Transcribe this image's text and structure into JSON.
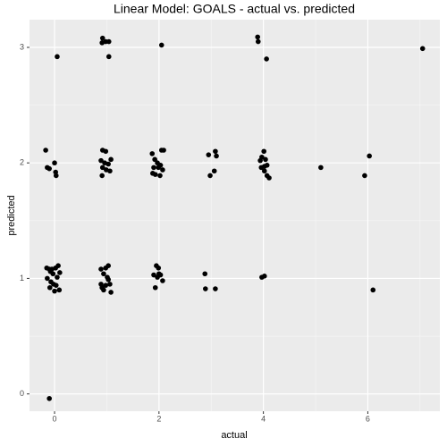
{
  "chart_data": {
    "type": "scatter",
    "title": "Linear Model: GOALS - actual vs. predicted",
    "x_label": "actual",
    "y_label": "predicted",
    "xlim": [
      -0.48,
      7.38
    ],
    "ylim": [
      -0.15,
      3.24
    ],
    "xticks": [
      0,
      2,
      4,
      6
    ],
    "yticks": [
      0,
      1,
      2,
      3
    ],
    "xminor": [
      1,
      3,
      5,
      7
    ],
    "yminor": [
      0.5,
      1.5,
      2.5
    ],
    "grid": true,
    "color": "#000000",
    "background": "#ebebeb",
    "x": [
      0.05,
      -0.17,
      -0.14,
      -0.1,
      0,
      0.02,
      0.03,
      -0.15,
      -0.1,
      -0.05,
      0.02,
      0.07,
      -0.14,
      -0.07,
      -0.02,
      0.03,
      0.09,
      -0.09,
      -0.03,
      0.05,
      0,
      -0.08,
      0.1,
      -0.1,
      0.92,
      0.98,
      1.04,
      0.91,
      1.04,
      0.92,
      0.98,
      0.89,
      0.96,
      1.03,
      1.08,
      0.99,
      1.06,
      0.91,
      0.92,
      0.89,
      0.98,
      1.03,
      0.94,
      1.01,
      0.89,
      0.98,
      1.06,
      0.94,
      1.08,
      1.03,
      0.91,
      2.05,
      1.87,
      2.05,
      2.09,
      1.92,
      1.97,
      2.03,
      1.9,
      1.99,
      2.07,
      1.93,
      2.02,
      1.88,
      1.95,
      1.99,
      1.9,
      1.97,
      2.03,
      2.07,
      1.93,
      2.0,
      2.95,
      3.08,
      3.1,
      2.98,
      3.06,
      2.88,
      2.89,
      3.08,
      3.89,
      3.9,
      4.06,
      4.01,
      3.97,
      3.94,
      4.04,
      3.96,
      4.02,
      4.07,
      4.02,
      4.07,
      4.11,
      3.97,
      4.02,
      5.1,
      5.94,
      6.03,
      6.1,
      7.05
    ],
    "y": [
      2.92,
      2.11,
      1.96,
      1.95,
      2.0,
      1.92,
      1.89,
      1.09,
      1.08,
      1.08,
      1.09,
      1.11,
      1.0,
      0.97,
      0.95,
      0.94,
      0.9,
      0.92,
      1.04,
      1.01,
      0.89,
      1.06,
      1.05,
      -0.04,
      3.08,
      3.05,
      3.05,
      3.04,
      2.92,
      2.11,
      2.1,
      2.02,
      2.0,
      1.99,
      2.03,
      1.94,
      1.93,
      1.89,
      1.96,
      1.08,
      1.09,
      1.11,
      1.04,
      1.01,
      0.95,
      0.94,
      0.95,
      0.9,
      0.88,
      0.99,
      0.92,
      3.02,
      2.08,
      2.11,
      2.11,
      2.03,
      2.0,
      1.98,
      1.96,
      1.96,
      1.94,
      1.9,
      1.89,
      1.91,
      1.11,
      1.09,
      1.03,
      1.01,
      1.03,
      0.98,
      0.92,
      1.04,
      2.07,
      2.1,
      2.06,
      1.89,
      1.93,
      1.04,
      0.91,
      0.91,
      3.09,
      3.05,
      2.9,
      2.1,
      2.05,
      2.02,
      2.03,
      1.96,
      1.97,
      1.98,
      1.93,
      1.89,
      1.87,
      1.01,
      1.02,
      1.96,
      1.89,
      2.06,
      0.9,
      2.99
    ]
  }
}
